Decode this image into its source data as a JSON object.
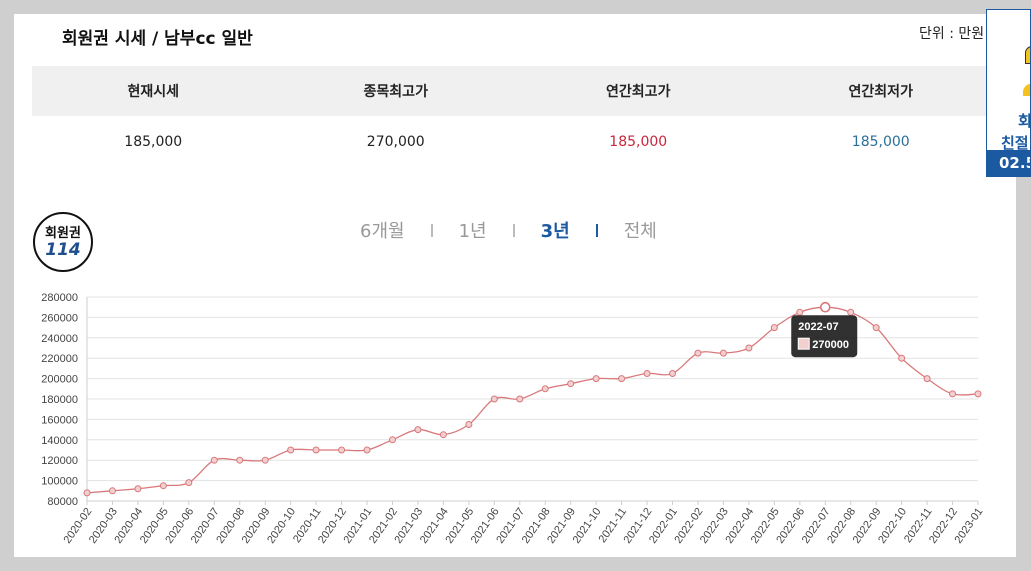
{
  "header": {
    "title": "회원권 시세 / 남부cc 일반",
    "unit": "단위 : 만원"
  },
  "stats": {
    "headers": [
      "현재시세",
      "종목최고가",
      "연간최고가",
      "연간최저가"
    ],
    "values": [
      "185,000",
      "270,000",
      "185,000",
      "185,000"
    ]
  },
  "logo": {
    "line1": "회원권",
    "line2": "114"
  },
  "periods": [
    {
      "label": "6개월",
      "active": false
    },
    {
      "label": "1년",
      "active": false
    },
    {
      "label": "3년",
      "active": true
    },
    {
      "label": "전체",
      "active": false
    }
  ],
  "sidebar": {
    "text1": "회",
    "text2": "친절",
    "footer": "02.5"
  },
  "colors": {
    "line": "#d9787a",
    "accent": "#1b5aa0",
    "high": "#c8273b",
    "low": "#2a6f9b"
  },
  "chart_data": {
    "type": "line",
    "x": [
      "2020-02",
      "2020-03",
      "2020-04",
      "2020-05",
      "2020-06",
      "2020-07",
      "2020-08",
      "2020-09",
      "2020-10",
      "2020-11",
      "2020-12",
      "2021-01",
      "2021-02",
      "2021-03",
      "2021-04",
      "2021-05",
      "2021-06",
      "2021-07",
      "2021-08",
      "2021-09",
      "2021-10",
      "2021-11",
      "2021-12",
      "2022-01",
      "2022-02",
      "2022-03",
      "2022-04",
      "2022-05",
      "2022-06",
      "2022-07",
      "2022-08",
      "2022-09",
      "2022-10",
      "2022-11",
      "2022-12",
      "2023-01"
    ],
    "values": [
      88000,
      90000,
      92000,
      95000,
      98000,
      120000,
      120000,
      120000,
      130000,
      130000,
      130000,
      130000,
      140000,
      150000,
      145000,
      155000,
      180000,
      180000,
      190000,
      195000,
      200000,
      200000,
      205000,
      205000,
      225000,
      225000,
      230000,
      250000,
      265000,
      270000,
      265000,
      250000,
      220000,
      200000,
      185000,
      185000
    ],
    "yticks": [
      80000,
      100000,
      120000,
      140000,
      160000,
      180000,
      200000,
      220000,
      240000,
      260000,
      280000
    ],
    "ylim": [
      80000,
      280000
    ],
    "grid": true,
    "tooltip": {
      "label": "2022-07",
      "value": "270000"
    }
  }
}
